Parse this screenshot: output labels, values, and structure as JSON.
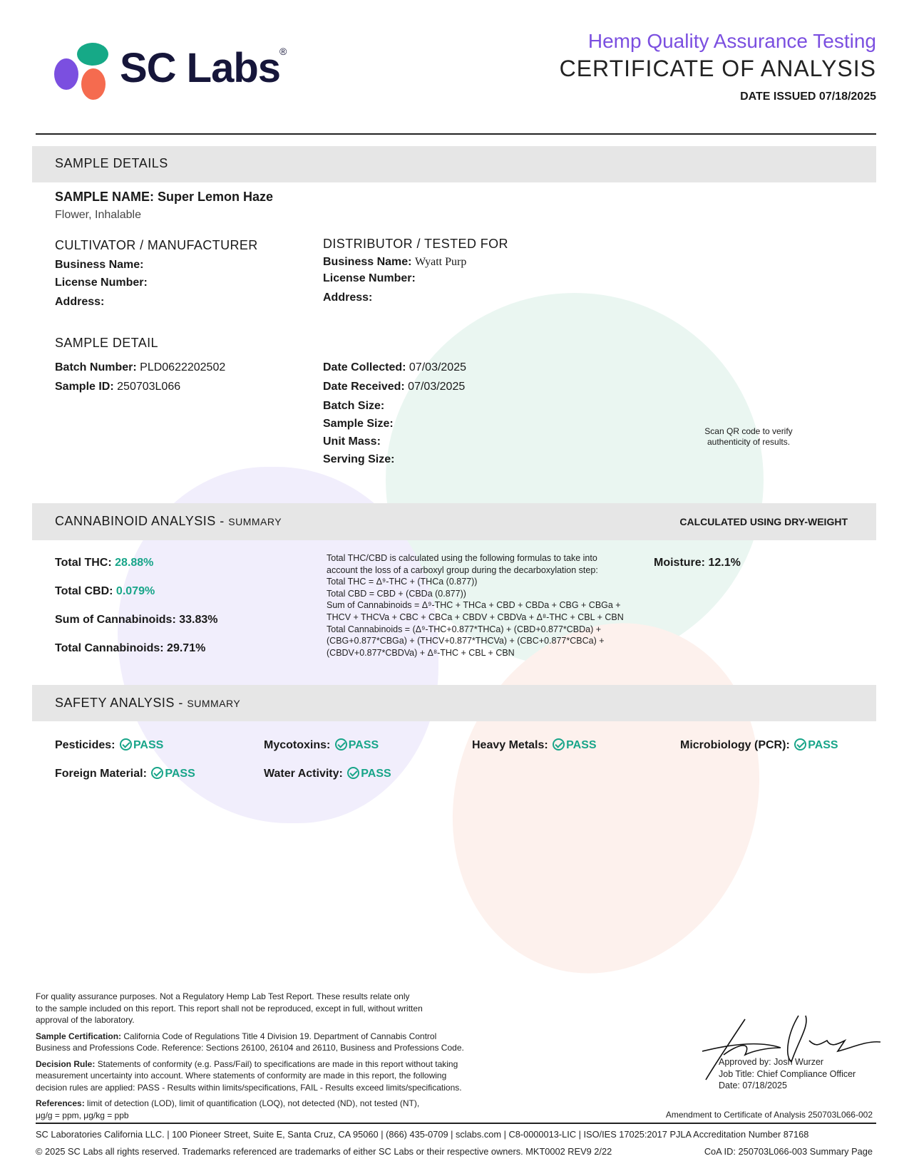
{
  "header": {
    "logo_text": "SC Labs",
    "subtitle": "Hemp Quality Assurance Testing",
    "title": "CERTIFICATE OF ANALYSIS",
    "date_issued": "DATE ISSUED 07/18/2025"
  },
  "colors": {
    "accent_purple": "#7b4fe0",
    "pass_green": "#18a589",
    "band_gray": "#e6e6e6"
  },
  "sample_details": {
    "heading": "SAMPLE DETAILS",
    "name_label": "SAMPLE NAME:",
    "name": "Super Lemon Haze",
    "type": "Flower, Inhalable",
    "cultivator": {
      "heading": "CULTIVATOR / MANUFACTURER",
      "business": "Business Name:",
      "license": "License Number:",
      "address": "Address:"
    },
    "distributor": {
      "heading": "DISTRIBUTOR / TESTED FOR",
      "business": "Business Name:",
      "business_value": "Wyatt Purp",
      "license": "License Number:",
      "address": "Address:"
    },
    "detail": {
      "heading": "SAMPLE DETAIL",
      "batch_label": "Batch Number:",
      "batch": "PLD0622202502",
      "id_label": "Sample ID:",
      "id": "250703L066",
      "collected_label": "Date Collected:",
      "collected": "07/03/2025",
      "received_label": "Date Received:",
      "received": "07/03/2025",
      "batch_size": "Batch Size:",
      "sample_size": "Sample Size:",
      "unit_mass": "Unit Mass:",
      "serving_size": "Serving Size:"
    },
    "qr_note_1": "Scan QR code to verify",
    "qr_note_2": "authenticity of results."
  },
  "cannabinoid": {
    "heading": "CANNABINOID ANALYSIS -",
    "heading_small": "SUMMARY",
    "method": "CALCULATED USING DRY-WEIGHT",
    "thc_label": "Total THC:",
    "thc": "28.88%",
    "cbd_label": "Total CBD:",
    "cbd": "0.079%",
    "sum_label": "Sum of Cannabinoids:",
    "sum": "33.83%",
    "total_label": "Total Cannabinoids:",
    "total": "29.71%",
    "moisture_label": "Moisture:",
    "moisture": "12.1%",
    "formulas": [
      "Total THC/CBD is calculated using the following formulas to take into",
      "account the loss of a carboxyl group during the decarboxylation step:",
      "Total THC = Δ⁹-THC + (THCa (0.877))",
      "Total CBD = CBD + (CBDa (0.877))",
      "Sum of Cannabinoids = Δ⁹-THC + THCa + CBD + CBDa + CBG + CBGa +",
      "THCV + THCVa + CBC + CBCa + CBDV + CBDVa + Δ⁸-THC + CBL + CBN",
      "Total Cannabinoids = (Δ⁹-THC+0.877*THCa) + (CBD+0.877*CBDa) +",
      "(CBG+0.877*CBGa) + (THCV+0.877*THCVa) + (CBC+0.877*CBCa) +",
      "(CBDV+0.877*CBDVa) + Δ⁸-THC + CBL + CBN"
    ]
  },
  "safety": {
    "heading": "SAFETY ANALYSIS -",
    "heading_small": "SUMMARY",
    "items": [
      {
        "label": "Pesticides:",
        "result": "PASS"
      },
      {
        "label": "Mycotoxins:",
        "result": "PASS"
      },
      {
        "label": "Heavy Metals:",
        "result": "PASS"
      },
      {
        "label": "Microbiology (PCR):",
        "result": "PASS"
      },
      {
        "label": "Foreign Material:",
        "result": "PASS"
      },
      {
        "label": "Water Activity:",
        "result": "PASS"
      }
    ]
  },
  "footer": {
    "disclaimer": [
      "For quality assurance purposes. Not a Regulatory Hemp Lab Test Report. These results relate only",
      "to the sample included on this report. This report shall not be reproduced, except in full, without written",
      "approval of the laboratory."
    ],
    "cert_label": "Sample Certification:",
    "cert": [
      "California Code of Regulations Title 4 Division 19. Department of Cannabis Control",
      "Business and Professions Code. Reference: Sections 26100, 26104 and 26110, Business and Professions Code."
    ],
    "rule_label": "Decision Rule:",
    "rule": [
      "Statements of conformity (e.g. Pass/Fail) to specifications are made in this report without taking",
      "measurement uncertainty into account. Where statements of conformity are made in this report, the following",
      "decision rules are applied: PASS - Results within limits/specifications, FAIL - Results exceed limits/specifications."
    ],
    "ref_label": "References:",
    "ref": [
      "limit of detection (LOD), limit of quantification (LOQ), not detected (ND), not tested (NT),",
      "μg/g = ppm, μg/kg = ppb"
    ],
    "approved": "Approved by: Josh Wurzer",
    "job": "Job Title: Chief Compliance Officer",
    "date": "Date: 07/18/2025",
    "amendment": "Amendment to Certificate of Analysis 250703L066-002",
    "company": "SC Laboratories California LLC. | 100 Pioneer Street, Suite E, Santa Cruz, CA 95060 | (866) 435-0709 | sclabs.com | C8-0000013-LIC | ISO/IES 17025:2017 PJLA Accreditation Number 87168",
    "copyright": "© 2025 SC Labs all rights reserved. Trademarks referenced are trademarks of either SC Labs or their respective owners. MKT0002 REV9 2/22",
    "coa": "CoA ID: 250703L066-003  Summary Page"
  }
}
